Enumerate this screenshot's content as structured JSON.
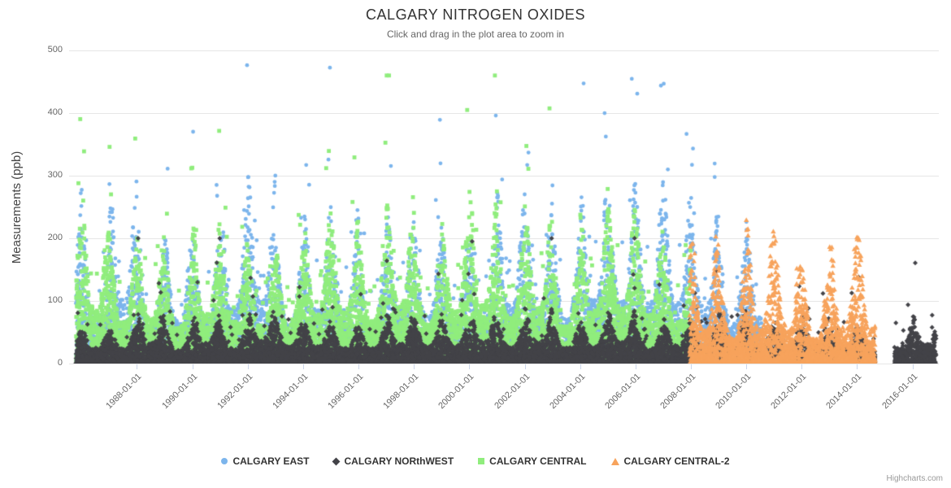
{
  "credits": "Highcharts.com",
  "chart_data": {
    "type": "scatter",
    "title": "CALGARY NITROGEN OXIDES",
    "subtitle": "Click and drag in the plot area to zoom in",
    "ylabel": "Measurements (ppb)",
    "ylim": [
      0,
      500
    ],
    "yticks": [
      0,
      100,
      200,
      300,
      400,
      500
    ],
    "x_range_years": [
      1985.55,
      2016.95
    ],
    "xtick_labels": [
      "1988-01-01",
      "1990-01-01",
      "1992-01-01",
      "1994-01-01",
      "1996-01-01",
      "1998-01-01",
      "2000-01-01",
      "2002-01-01",
      "2004-01-01",
      "2006-01-01",
      "2008-01-01",
      "2010-01-01",
      "2012-01-01",
      "2014-01-01",
      "2016-01-01"
    ],
    "grid": "horizontal",
    "legend_position": "bottom-center",
    "series": [
      {
        "name": "CALGARY EAST",
        "color": "#7cb5ec",
        "marker": "circle",
        "start": 1985.8,
        "end": 2010.55,
        "points_per_year": 430,
        "base": 85,
        "winter_amp": 165,
        "tail_exp": 1.9,
        "outlier_rate": 0.01,
        "outlier_max": 490
      },
      {
        "name": "CALGARY NORthWEST",
        "color": "#434348",
        "marker": "diamond",
        "segments": [
          [
            1985.8,
            2014.65
          ],
          [
            2015.35,
            2016.85
          ]
        ],
        "points_per_year": 480,
        "base": 30,
        "winter_amp": 45,
        "tail_exp": 2.4,
        "outlier_rate": 0.006,
        "outlier_max": 200
      },
      {
        "name": "CALGARY CENTRAL",
        "color": "#90ed7d",
        "marker": "square",
        "start": 1985.8,
        "end": 2008.0,
        "points_per_year": 460,
        "base": 80,
        "winter_amp": 150,
        "tail_exp": 1.9,
        "outlier_rate": 0.009,
        "outlier_max": 460
      },
      {
        "name": "CALGARY CENTRAL-2",
        "color": "#f7a35c",
        "marker": "triangle",
        "start": 2007.95,
        "end": 2014.65,
        "points_per_year": 420,
        "base": 55,
        "winter_amp": 165,
        "tail_exp": 2.0,
        "outlier_rate": 0.004,
        "outlier_max": 245
      }
    ],
    "draw_order": [
      0,
      2,
      1,
      3
    ]
  }
}
